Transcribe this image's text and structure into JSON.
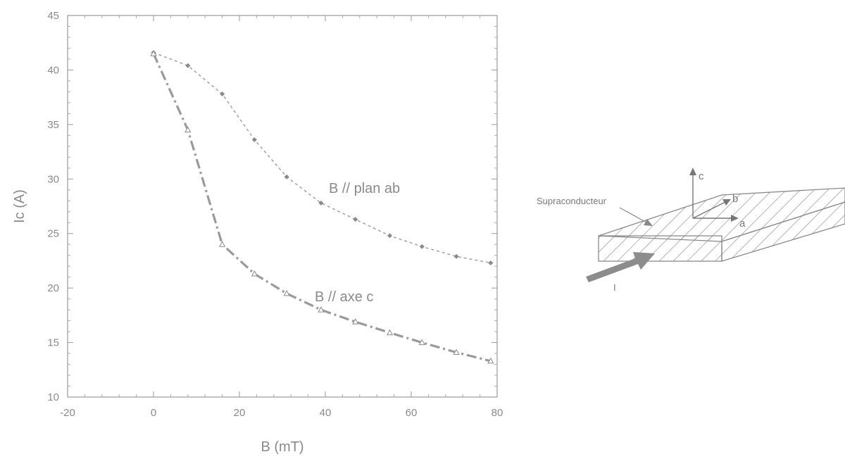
{
  "chart_data": {
    "type": "line",
    "xlabel": "B (mT)",
    "ylabel": "Ic (A)",
    "xlim": [
      -20,
      80
    ],
    "ylim": [
      10,
      45
    ],
    "x_ticks": [
      -20,
      0,
      20,
      40,
      60,
      80
    ],
    "y_ticks": [
      10,
      15,
      20,
      25,
      30,
      35,
      40,
      45
    ],
    "grid": false,
    "series": [
      {
        "name": "B // plan ab",
        "style": "dotted",
        "marker": "diamond",
        "color": "#9a9a9a",
        "x": [
          0,
          8,
          16,
          23.5,
          31,
          39,
          47,
          55,
          62.5,
          70.5,
          78.5
        ],
        "y": [
          41.6,
          40.4,
          37.8,
          33.6,
          30.2,
          27.8,
          26.3,
          24.8,
          23.8,
          22.9,
          22.3
        ]
      },
      {
        "name": "B // axe c",
        "style": "dash-dot",
        "marker": "triangle",
        "color": "#9a9a9a",
        "x": [
          0,
          8,
          16,
          23.5,
          31,
          39,
          47,
          55,
          62.5,
          70.5,
          78.5
        ],
        "y": [
          41.5,
          34.5,
          24.0,
          21.3,
          19.5,
          18.0,
          16.9,
          15.9,
          15.0,
          14.1,
          13.3
        ]
      }
    ]
  },
  "diagram": {
    "label_material": "Supraconducteur",
    "axis_c": "c",
    "axis_b": "b",
    "axis_a": "a",
    "current": "I"
  }
}
